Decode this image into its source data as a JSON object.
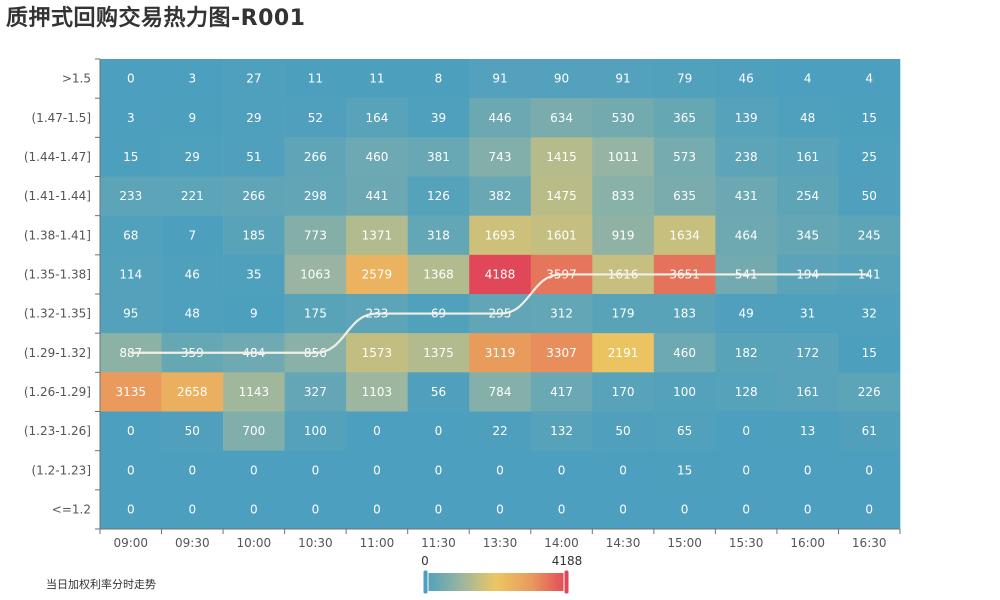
{
  "title": "质押式回购交易热力图-R001",
  "legend_caption": "当日加权利率分时走势",
  "chart_data": {
    "type": "heatmap",
    "title": "质押式回购交易热力图-R001",
    "x_categories": [
      "09:00",
      "09:30",
      "10:00",
      "10:30",
      "11:00",
      "11:30",
      "13:30",
      "14:00",
      "14:30",
      "15:00",
      "15:30",
      "16:00",
      "16:30"
    ],
    "y_categories": [
      ">1.5",
      "(1.47-1.5]",
      "(1.44-1.47]",
      "(1.41-1.44]",
      "(1.38-1.41]",
      "(1.35-1.38]",
      "(1.32-1.35]",
      "(1.29-1.32]",
      "(1.26-1.29]",
      "(1.23-1.26]",
      "(1.2-1.23]",
      "<=1.2"
    ],
    "values": [
      [
        0,
        3,
        27,
        11,
        11,
        8,
        91,
        90,
        91,
        79,
        46,
        4,
        4
      ],
      [
        3,
        9,
        29,
        52,
        164,
        39,
        446,
        634,
        530,
        365,
        139,
        48,
        15
      ],
      [
        15,
        29,
        51,
        266,
        460,
        381,
        743,
        1415,
        1011,
        573,
        238,
        161,
        25
      ],
      [
        233,
        221,
        266,
        298,
        441,
        126,
        382,
        1475,
        833,
        635,
        431,
        254,
        50
      ],
      [
        68,
        7,
        185,
        773,
        1371,
        318,
        1693,
        1601,
        919,
        1634,
        464,
        345,
        245
      ],
      [
        114,
        46,
        35,
        1063,
        2579,
        1368,
        4188,
        3597,
        1616,
        3651,
        541,
        194,
        141
      ],
      [
        95,
        48,
        9,
        175,
        233,
        69,
        295,
        312,
        179,
        183,
        49,
        31,
        32
      ],
      [
        887,
        359,
        484,
        856,
        1573,
        1375,
        3119,
        3307,
        2191,
        460,
        182,
        172,
        15
      ],
      [
        3135,
        2658,
        1143,
        327,
        1103,
        56,
        784,
        417,
        170,
        100,
        128,
        161,
        226
      ],
      [
        0,
        50,
        700,
        100,
        0,
        0,
        22,
        132,
        50,
        65,
        0,
        13,
        61
      ],
      [
        0,
        0,
        0,
        0,
        0,
        0,
        0,
        0,
        0,
        15,
        0,
        0,
        0
      ],
      [
        0,
        0,
        0,
        0,
        0,
        0,
        0,
        0,
        0,
        0,
        0,
        0,
        0
      ]
    ],
    "visual_map": {
      "min": 0,
      "max": 4188,
      "min_label": "0",
      "max_label": "4188",
      "colors": [
        "#4c9fbe",
        "#98b5a2",
        "#ecc762",
        "#e99a5c",
        "#e0485a"
      ]
    },
    "trend_line": {
      "name": "当日加权利率分时走势",
      "color": "#f2efe4",
      "y_categories": [
        "(1.29-1.32]",
        "(1.29-1.32]",
        "(1.29-1.32]",
        "(1.29-1.32]",
        "(1.32-1.35]",
        "(1.32-1.35]",
        "(1.32-1.35]",
        "(1.35-1.38]",
        "(1.35-1.38]",
        "(1.35-1.38]",
        "(1.35-1.38]",
        "(1.35-1.38]",
        "(1.35-1.38]"
      ]
    }
  }
}
